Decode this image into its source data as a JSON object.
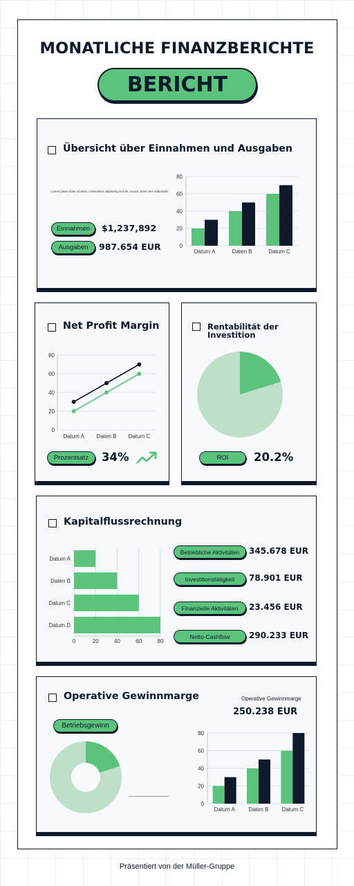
{
  "header": {
    "title": "MONATLICHE FINANZBERICHTE",
    "badge": "BERICHT"
  },
  "colors": {
    "green": "#5ac47c",
    "navy": "#0c1a2c",
    "pale_green": "#bfe0c8",
    "card_bg": "#f8f9fc"
  },
  "overview": {
    "title": "Übersicht über Einnahmen und Ausgaben",
    "lorem": "Lorem ipsum dolor sit amet, consectetur adipiscing sed elit, cursus, amet sem sollicitudin.",
    "income_label": "Einnahmen",
    "income_value": "$1,237,892",
    "expense_label": "Ausgaben",
    "expense_value": "987.654 EUR"
  },
  "net_profit": {
    "title": "Net Profit Margin",
    "label": "Prozentsatz",
    "value": "34%",
    "trend_icon": "trend-up-icon"
  },
  "roi": {
    "title": "Rentabilität der Investition",
    "label": "ROI",
    "value": "20.2%"
  },
  "cashflow": {
    "title": "Kapitalflussrechnung",
    "items": [
      {
        "label": "Betriebliche Aktivitäten",
        "value": "345.678 EUR"
      },
      {
        "label": "Investitionstätigkeit",
        "value": "78.901 EUR"
      },
      {
        "label": "Finanzielle Aktivitäten",
        "value": "23.456 EUR"
      },
      {
        "label": "Netto-Cashflow",
        "value": "290.233 EUR"
      }
    ]
  },
  "operating": {
    "title": "Operative Gewinnmarge",
    "caption": "Operative Gewinnmarge",
    "value": "250.238 EUR",
    "label": "Betriebsgewinn"
  },
  "footer": {
    "text": "Präsentiert von der Müller-Gruppe"
  },
  "chart_data": [
    {
      "id": "overview-bar",
      "type": "bar",
      "categories": [
        "Datum A",
        "Daten B",
        "Datum C"
      ],
      "series": [
        {
          "values": [
            20,
            40,
            60
          ],
          "color": "#5ac47c"
        },
        {
          "values": [
            30,
            50,
            70
          ],
          "color": "#0c1a2c"
        }
      ],
      "ylim": [
        0,
        80
      ],
      "yticks": [
        0,
        20,
        40,
        60,
        80
      ],
      "grid": true
    },
    {
      "id": "net-profit-line",
      "type": "line",
      "categories": [
        "Datum A",
        "Daten B",
        "Datum C"
      ],
      "series": [
        {
          "values": [
            30,
            50,
            70
          ],
          "color": "#0c1a2c"
        },
        {
          "values": [
            20,
            40,
            60
          ],
          "color": "#5ac47c"
        }
      ],
      "ylim": [
        0,
        80
      ],
      "yticks": [
        0,
        20,
        40,
        60,
        80
      ],
      "grid": true
    },
    {
      "id": "roi-pie",
      "type": "pie",
      "slices": [
        {
          "value": 20.2,
          "color": "#5ac47c"
        },
        {
          "value": 79.8,
          "color": "#bfe0c8"
        }
      ]
    },
    {
      "id": "cashflow-hbar",
      "type": "bar",
      "orientation": "horizontal",
      "categories": [
        "Datum A",
        "Daten B",
        "Datum C",
        "Datum D"
      ],
      "values": [
        20,
        40,
        60,
        80
      ],
      "xlim": [
        0,
        80
      ],
      "xticks": [
        0,
        20,
        40,
        60,
        80
      ],
      "grid": true
    },
    {
      "id": "operating-donut",
      "type": "pie",
      "donut": true,
      "slices": [
        {
          "value": 20,
          "color": "#5ac47c"
        },
        {
          "value": 80,
          "color": "#bfe0c8"
        }
      ]
    },
    {
      "id": "operating-bar",
      "type": "bar",
      "categories": [
        "Datum A",
        "Daten B",
        "Datum C"
      ],
      "series": [
        {
          "values": [
            20,
            40,
            60
          ],
          "color": "#5ac47c"
        },
        {
          "values": [
            30,
            50,
            80
          ],
          "color": "#0c1a2c"
        }
      ],
      "ylim": [
        0,
        80
      ],
      "yticks": [
        0,
        20,
        40,
        60,
        80
      ],
      "grid": true
    }
  ]
}
